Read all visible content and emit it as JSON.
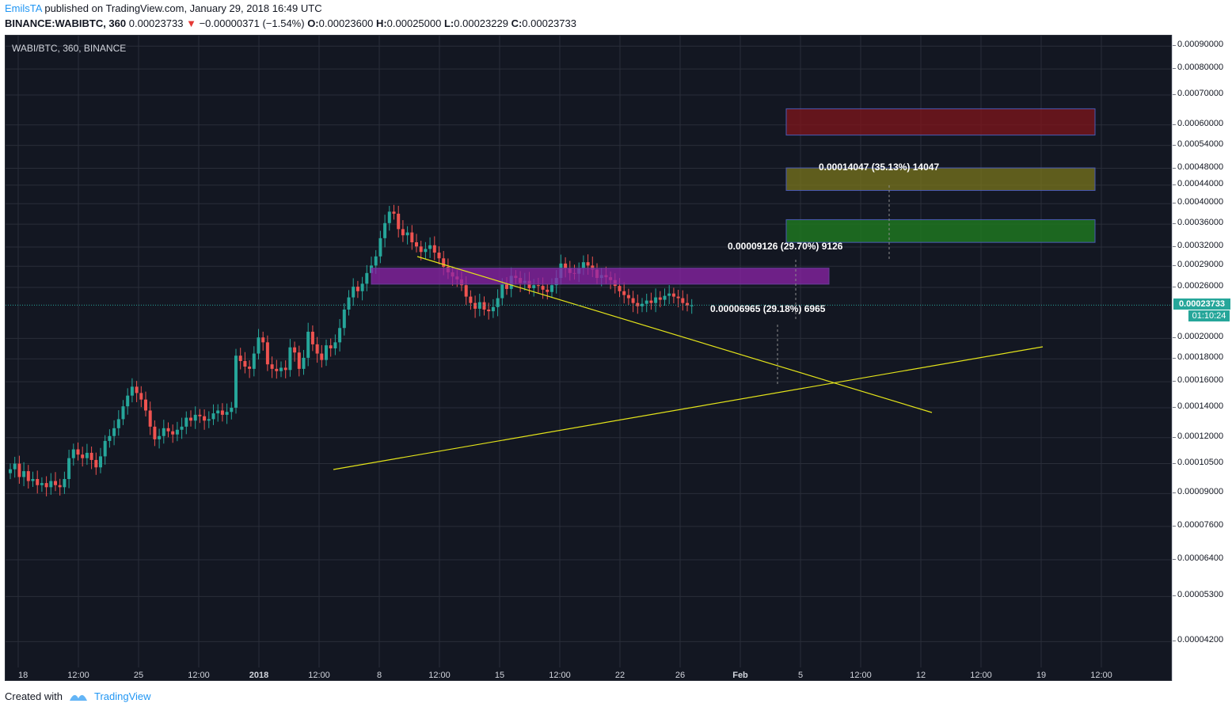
{
  "header": {
    "author": "EmilsTA",
    "published_text": "published on TradingView.com, January 29, 2018 16:49 UTC",
    "symbol": "BINANCE:WABIBTC, 360",
    "last": "0.00023733",
    "change": "−0.00000371 (−1.54%)",
    "o_label": "O:",
    "o": "0.00023600",
    "h_label": "H:",
    "h": "0.00025000",
    "l_label": "L:",
    "l": "0.00023229",
    "c_label": "C:",
    "c": "0.00023733"
  },
  "footer": {
    "created_with": "Created with",
    "brand": "TradingView"
  },
  "colors": {
    "bg": "#131722",
    "up": "#26a69a",
    "down": "#ef5350",
    "grid": "#2a2e39",
    "trend": "#e4e41a",
    "price_tag": "#26a69a"
  },
  "chart_data": {
    "type": "candlestick",
    "title": "WABI/BTC, 360, BINANCE",
    "scale": "log",
    "ylim": [
      3.8e-05,
      0.00095
    ],
    "y_ticks": [
      "0.00090000",
      "0.00080000",
      "0.00070000",
      "0.00060000",
      "0.00054000",
      "0.00048000",
      "0.00044000",
      "0.00040000",
      "0.00036000",
      "0.00032000",
      "0.00029000",
      "0.00026000",
      "0.00020000",
      "0.00018000",
      "0.00016000",
      "0.00014000",
      "0.00012000",
      "0.00010500",
      "0.00009000",
      "0.00007600",
      "0.00006400",
      "0.00005300",
      "0.00004200"
    ],
    "x_ticks": [
      "18",
      "12:00",
      "25",
      "12:00",
      "2018",
      "12:00",
      "8",
      "12:00",
      "15",
      "12:00",
      "22",
      "26",
      "Feb",
      "5",
      "12:00",
      "12",
      "12:00",
      "19",
      "12:00"
    ],
    "last_price": "0.00023733",
    "countdown": "01:10:24",
    "closes": [
      0.000102,
      0.000105,
      9.8e-05,
      0.000101,
      9.6e-05,
      9.7e-05,
      9.4e-05,
      9.5e-05,
      9.3e-05,
      9.6e-05,
      9.4e-05,
      9.3e-05,
      9.7e-05,
      0.000108,
      0.000113,
      0.00011,
      0.000108,
      0.000111,
      0.000107,
      0.000103,
      0.000109,
      0.000118,
      0.000121,
      0.000126,
      0.000132,
      0.000141,
      0.000149,
      0.000156,
      0.000151,
      0.000146,
      0.000138,
      0.000127,
      0.000119,
      0.000121,
      0.000126,
      0.000124,
      0.000122,
      0.000125,
      0.000127,
      0.000133,
      0.000131,
      0.000135,
      0.000134,
      0.000131,
      0.000132,
      0.000136,
      0.000138,
      0.000135,
      0.000137,
      0.00014,
      0.000183,
      0.000178,
      0.000173,
      0.000171,
      0.000185,
      0.000201,
      0.000196,
      0.000175,
      0.000171,
      0.000169,
      0.000172,
      0.00017,
      0.000191,
      0.000186,
      0.000171,
      0.000181,
      0.000207,
      0.000194,
      0.000185,
      0.000179,
      0.000193,
      0.00019,
      0.000196,
      0.000211,
      0.000232,
      0.000247,
      0.000261,
      0.000255,
      0.000265,
      0.00028,
      0.000291,
      0.000305,
      0.000335,
      0.000362,
      0.000384,
      0.00038,
      0.000351,
      0.00034,
      0.000345,
      0.000328,
      0.000321,
      0.000312,
      0.000317,
      0.000323,
      0.000311,
      0.000302,
      0.000289,
      0.000281,
      0.000275,
      0.000271,
      0.000263,
      0.000248,
      0.00024,
      0.000233,
      0.000241,
      0.000232,
      0.00023,
      0.000235,
      0.000246,
      0.000264,
      0.000258,
      0.000276,
      0.000273,
      0.000266,
      0.000269,
      0.000259,
      0.000263,
      0.000262,
      0.000257,
      0.000254,
      0.000263,
      0.000273,
      0.000294,
      0.000287,
      0.00028,
      0.000279,
      0.000287,
      0.000296,
      0.000291,
      0.000285,
      0.000273,
      0.000277,
      0.000274,
      0.00027,
      0.000262,
      0.000255,
      0.00025,
      0.000246,
      0.00024,
      0.000236,
      0.000239,
      0.000243,
      0.00024,
      0.000247,
      0.000244,
      0.000249,
      0.000252,
      0.000248,
      0.000246,
      0.00024,
      0.000237,
      0.000237
    ],
    "annotations": [
      {
        "text": "0.00014047 (35.13%) 14047"
      },
      {
        "text": "0.00009126 (29.70%) 9126"
      },
      {
        "text": "0.00006965 (29.18%) 6965"
      }
    ]
  }
}
